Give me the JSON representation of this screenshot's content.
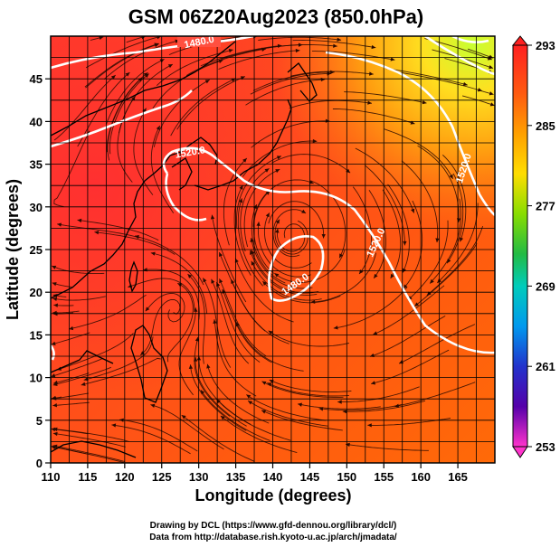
{
  "title": "GSM 06Z20Aug2023 (850.0hPa)",
  "x_axis": {
    "label": "Longitude (degrees)",
    "ticks": [
      "110",
      "115",
      "120",
      "125",
      "130",
      "135",
      "140",
      "145",
      "150",
      "155",
      "160",
      "165"
    ]
  },
  "y_axis": {
    "label": "Latitude  (degrees)",
    "ticks": [
      "0",
      "5",
      "10",
      "15",
      "20",
      "25",
      "30",
      "35",
      "40",
      "45"
    ]
  },
  "colorbar": {
    "labels": [
      "293",
      "285",
      "277",
      "269",
      "261",
      "253"
    ],
    "colors": [
      "#ff2020",
      "#ff8800",
      "#ffcc00",
      "#aadd00",
      "#22bb22",
      "#00ccaa",
      "#0099ee",
      "#2233cc",
      "#5500aa",
      "#cc11aa",
      "#ff33cc"
    ]
  },
  "contours": {
    "labels": [
      "1480.0",
      "1520.0",
      "1480.0",
      "1520.0",
      "1520.0"
    ]
  },
  "credits": {
    "line1": "Drawing by DCL (https://www.gfd-dennou.org/library/dcl/)",
    "line2": "Data from http://database.rish.kyoto-u.ac.jp/arch/jmadata/"
  },
  "chart_data": {
    "type": "heatmap",
    "title": "GSM 06Z20Aug2023 (850.0hPa)",
    "xlabel": "Longitude (degrees)",
    "ylabel": "Latitude  (degrees)",
    "xlim": [
      110,
      170
    ],
    "ylim": [
      0,
      50
    ],
    "color_range": [
      253,
      293
    ],
    "colorbar_ticks": [
      293,
      285,
      277,
      269,
      261,
      253
    ],
    "contour_levels_labeled": [
      1480.0,
      1520.0
    ],
    "grid": true
  }
}
